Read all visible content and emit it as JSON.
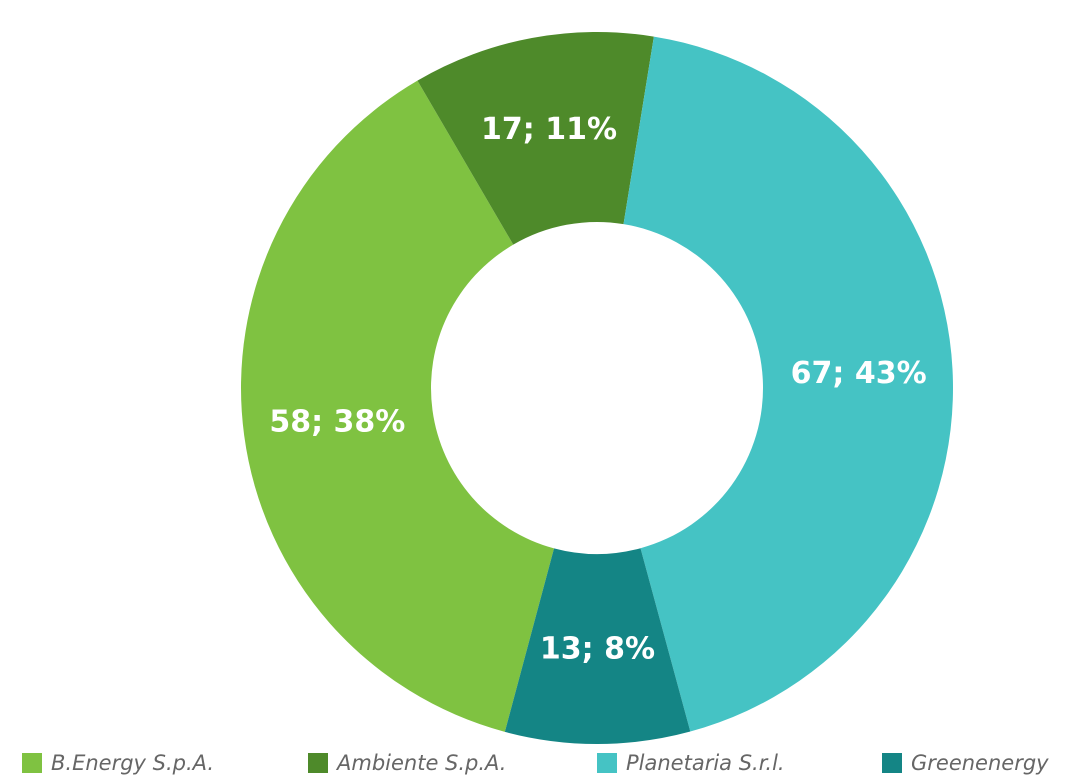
{
  "chart_data": {
    "type": "donut",
    "categories": [
      "B.Energy S.p.A.",
      "Ambiente S.p.A.",
      "Planetaria S.r.l.",
      "Greenenergy"
    ],
    "values": [
      58,
      17,
      67,
      13
    ],
    "value_labels": [
      "58; 38%",
      "17; 11%",
      "67; 43%",
      "13; 8%"
    ],
    "colors": [
      "#7fc241",
      "#4e8a2a",
      "#45c3c4",
      "#148585"
    ],
    "legend": "bottom"
  }
}
